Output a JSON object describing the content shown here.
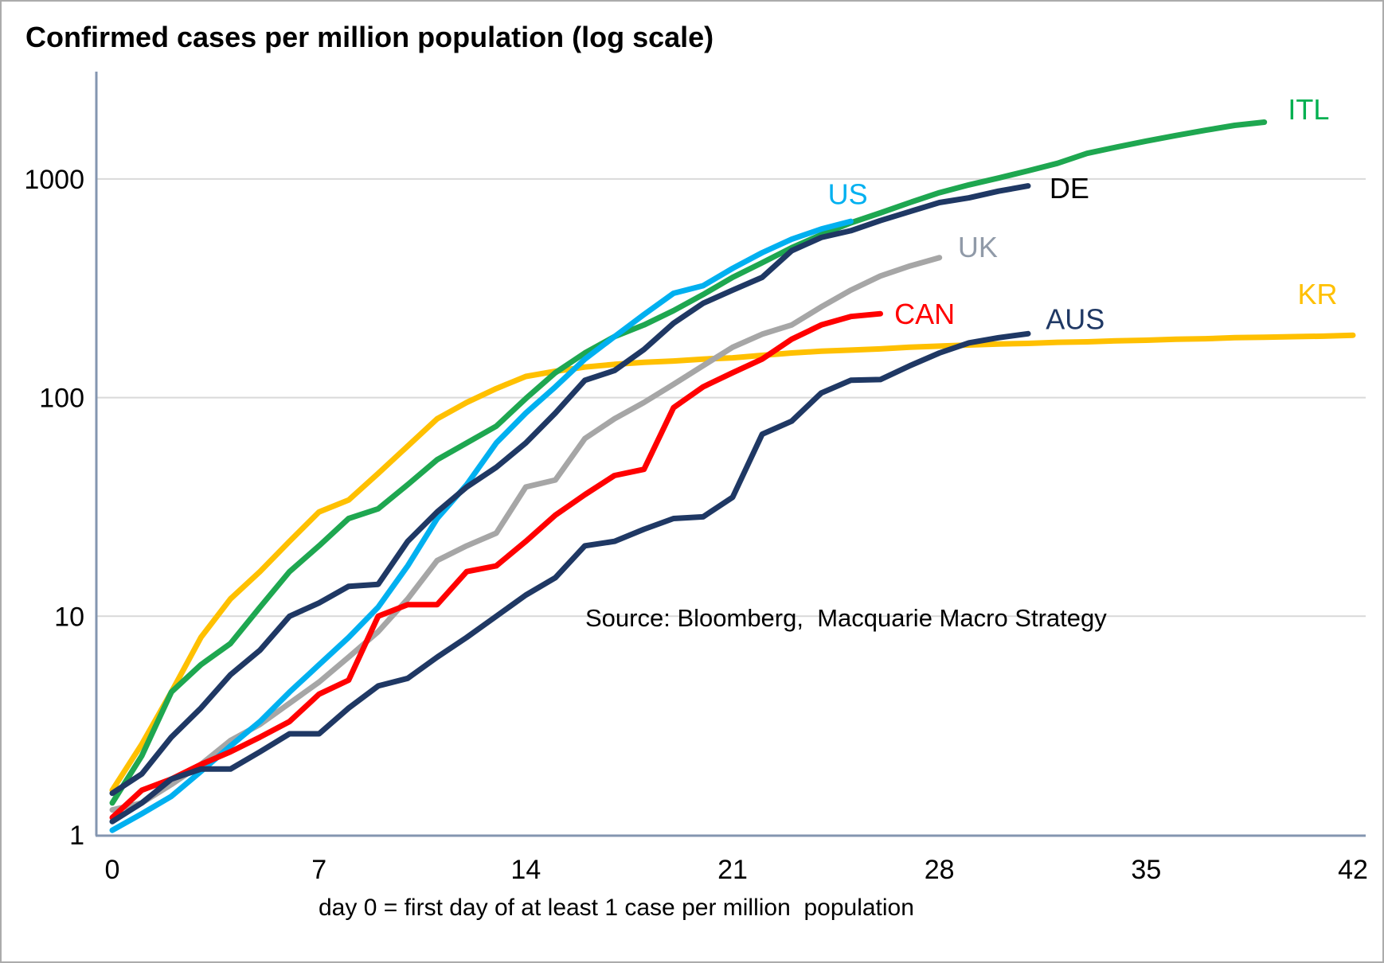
{
  "chart_data": {
    "type": "line",
    "title": "Confirmed cases per million population (log scale)",
    "xlabel": "day 0 = first day of at least 1 case per million  population",
    "ylabel": "",
    "yscale": "log",
    "xlim": [
      0,
      42
    ],
    "ylim": [
      1,
      2400
    ],
    "xticks": [
      0,
      7,
      14,
      21,
      28,
      35,
      42
    ],
    "yticks": [
      1,
      10,
      100,
      1000
    ],
    "grid": "horizontal",
    "legend_style": "end-of-line-labels",
    "source_note": "Source: Bloomberg,  Macquarie Macro Strategy",
    "colors": {
      "axis": "#8496b0",
      "gridline": "#d9d9d9",
      "text": "#000000"
    },
    "series": [
      {
        "id": "kr",
        "name": "KR",
        "color": "#ffc000",
        "label_color": "#ffc000",
        "start_day": 0,
        "label_day": 40.8,
        "label_value": 296,
        "values": [
          1.6,
          2.6,
          4.5,
          8,
          12,
          16,
          22,
          30,
          34,
          45,
          60,
          80,
          95,
          110,
          125,
          132,
          138,
          142,
          145,
          147,
          150,
          152,
          156,
          160,
          163,
          165,
          167,
          170,
          172,
          174,
          176,
          177,
          179,
          180,
          182,
          183,
          185,
          186,
          188,
          189,
          190,
          191,
          193
        ]
      },
      {
        "id": "itl",
        "name": "ITL",
        "color": "#1ea750",
        "label_color": "#00b050",
        "start_day": 0,
        "label_day": 40.5,
        "label_value": 2070,
        "values": [
          1.4,
          2.3,
          4.5,
          6,
          7.5,
          11,
          16,
          21,
          28,
          31,
          40,
          52,
          62,
          74,
          99,
          130,
          160,
          190,
          215,
          250,
          296,
          355,
          414,
          485,
          556,
          630,
          700,
          780,
          866,
          940,
          1010,
          1090,
          1180,
          1310,
          1400,
          1490,
          1580,
          1670,
          1760,
          1820
        ]
      },
      {
        "id": "uk",
        "name": "UK",
        "color": "#a6a6a6",
        "label_color": "#909aa8",
        "start_day": 0,
        "label_day": 29.3,
        "label_value": 485,
        "values": [
          1.3,
          1.4,
          1.7,
          2.1,
          2.7,
          3.2,
          4,
          5,
          6.5,
          8.5,
          12,
          18,
          21,
          24,
          39,
          42,
          65,
          80,
          95,
          115,
          140,
          170,
          195,
          215,
          260,
          310,
          360,
          400,
          437
        ]
      },
      {
        "id": "us",
        "name": "US",
        "color": "#00b0f0",
        "label_color": "#00b0f0",
        "start_day": 0,
        "label_day": 24.9,
        "label_value": 850,
        "values": [
          1.05,
          1.25,
          1.5,
          1.95,
          2.55,
          3.3,
          4.5,
          6,
          8,
          11,
          17,
          28,
          40,
          62,
          85,
          112,
          150,
          190,
          240,
          300,
          325,
          390,
          460,
          530,
          590,
          640
        ]
      },
      {
        "id": "can",
        "name": "CAN",
        "color": "#ff0000",
        "label_color": "#ff0000",
        "start_day": 0,
        "label_day": 27.5,
        "label_value": 240,
        "values": [
          1.2,
          1.6,
          1.8,
          2.1,
          2.4,
          2.8,
          3.3,
          4.4,
          5.1,
          10,
          11.3,
          11.3,
          16,
          17,
          22,
          29,
          36,
          44,
          47,
          90,
          112,
          130,
          150,
          185,
          215,
          235,
          242
        ]
      },
      {
        "id": "aus",
        "name": "AUS",
        "color": "#1f3864",
        "label_color": "#1f3864",
        "start_day": 0,
        "label_day": 32.6,
        "label_value": 228,
        "values": [
          1.15,
          1.4,
          1.8,
          2,
          2,
          2.4,
          2.9,
          2.9,
          3.8,
          4.8,
          5.2,
          6.5,
          8,
          10,
          12.5,
          15,
          21,
          22,
          25,
          28,
          28.5,
          35,
          68,
          78,
          105,
          120,
          121,
          140,
          160,
          178,
          188,
          196
        ]
      },
      {
        "id": "de",
        "name": "DE",
        "color": "#1f3864",
        "label_color": "#000000",
        "start_day": 0,
        "label_day": 32.4,
        "label_value": 903,
        "values": [
          1.55,
          1.9,
          2.8,
          3.8,
          5.4,
          7,
          10,
          11.5,
          13.7,
          14,
          22,
          30,
          39,
          48,
          62,
          85,
          120,
          133,
          166,
          219,
          270,
          310,
          355,
          470,
          540,
          580,
          645,
          710,
          780,
          820,
          880,
          930
        ]
      }
    ]
  }
}
